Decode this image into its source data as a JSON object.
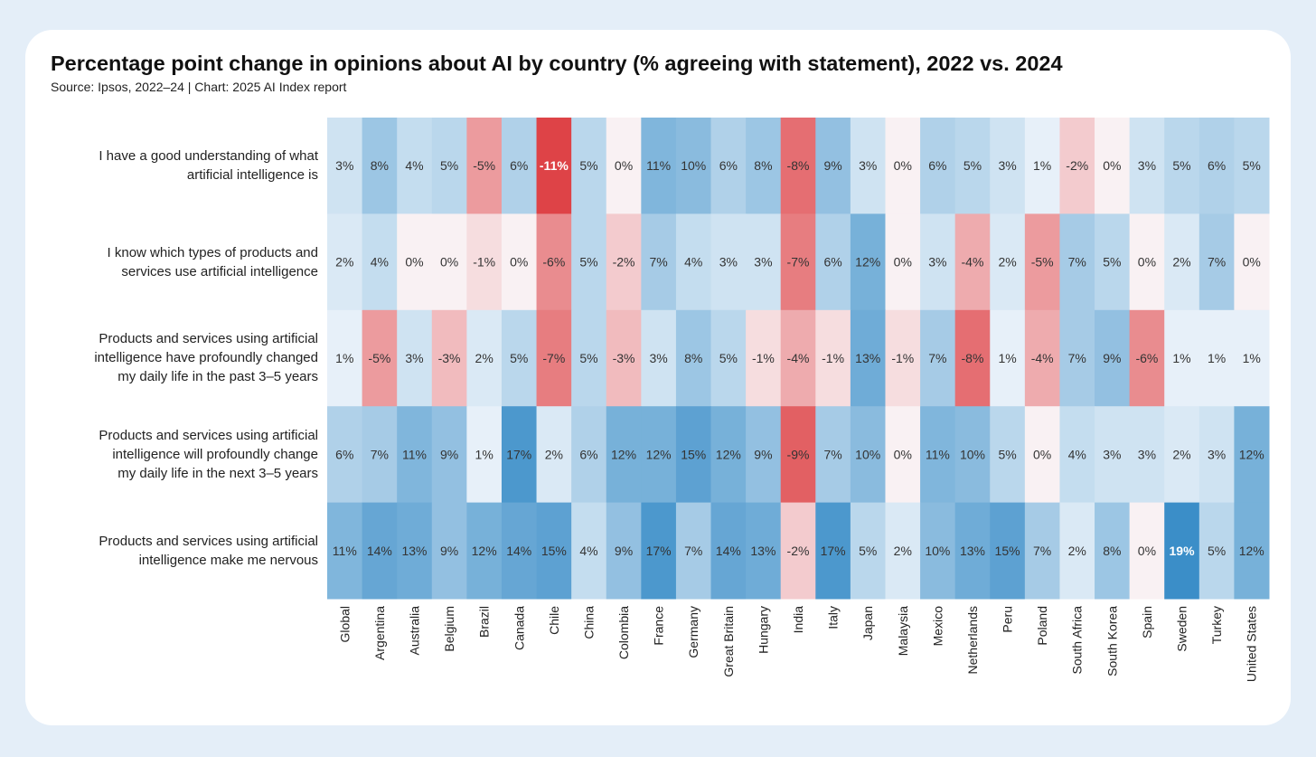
{
  "chart_data": {
    "type": "heatmap",
    "title": "Percentage point change in opinions about AI by country (% agreeing with statement), 2022 vs. 2024",
    "subtitle": "Source: Ipsos, 2022–24 | Chart: 2025 AI Index report",
    "x_categories": [
      "Global",
      "Argentina",
      "Australia",
      "Belgium",
      "Brazil",
      "Canada",
      "Chile",
      "China",
      "Colombia",
      "France",
      "Germany",
      "Great Britain",
      "Hungary",
      "India",
      "Italy",
      "Japan",
      "Malaysia",
      "Mexico",
      "Netherlands",
      "Peru",
      "Poland",
      "South Africa",
      "South Korea",
      "Spain",
      "Sweden",
      "Turkey",
      "United States"
    ],
    "y_categories": [
      "I have a good understanding of what artificial intelligence is",
      "I know which types of products and services use artificial intelligence",
      "Products and services using artificial intelligence have profoundly changed my daily life in the past 3–5 years",
      "Products and services using artificial intelligence will profoundly change my daily life in the next 3–5 years",
      "Products and services using artificial intelligence make me nervous"
    ],
    "values": [
      [
        3,
        8,
        4,
        5,
        -5,
        6,
        -11,
        5,
        0,
        11,
        10,
        6,
        8,
        -8,
        9,
        3,
        0,
        6,
        5,
        3,
        1,
        -2,
        0,
        3,
        5,
        6,
        5
      ],
      [
        2,
        4,
        0,
        0,
        -1,
        0,
        -6,
        5,
        -2,
        7,
        4,
        3,
        3,
        -7,
        6,
        12,
        0,
        3,
        -4,
        2,
        -5,
        7,
        5,
        0,
        2,
        7,
        0
      ],
      [
        1,
        -5,
        3,
        -3,
        2,
        5,
        -7,
        5,
        -3,
        3,
        8,
        5,
        -1,
        -4,
        -1,
        13,
        -1,
        7,
        -8,
        1,
        -4,
        7,
        9,
        -6,
        1,
        1,
        1
      ],
      [
        6,
        7,
        11,
        9,
        1,
        17,
        2,
        6,
        12,
        12,
        15,
        12,
        9,
        -9,
        7,
        10,
        0,
        11,
        10,
        5,
        0,
        4,
        3,
        3,
        2,
        3,
        12
      ],
      [
        11,
        14,
        13,
        9,
        12,
        14,
        15,
        4,
        9,
        17,
        7,
        14,
        13,
        -2,
        17,
        5,
        2,
        10,
        13,
        15,
        7,
        2,
        8,
        0,
        19,
        5,
        12
      ]
    ],
    "value_suffix": "%",
    "colors": {
      "negative": "#de4347",
      "zero": "#f9f1f3",
      "positive": "#3b8ec8",
      "text": "#333333",
      "text_strong": "#ffffff"
    },
    "value_range": [
      -11,
      19
    ]
  }
}
